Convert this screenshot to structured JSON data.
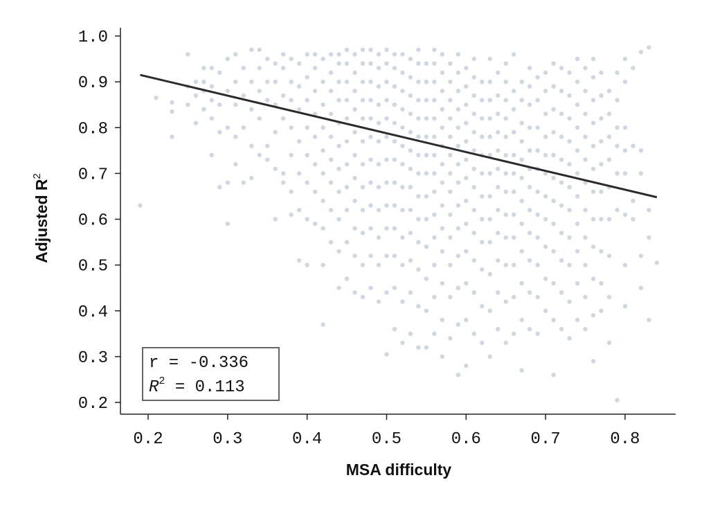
{
  "chart_data": {
    "type": "scatter",
    "xlabel": "MSA difficulty",
    "ylabel": "Adjusted R",
    "ylabel_superscript": "2",
    "xlim": [
      0.17,
      0.87
    ],
    "ylim": [
      0.175,
      1.02
    ],
    "xticks": [
      "0.2",
      "0.3",
      "0.4",
      "0.5",
      "0.6",
      "0.7",
      "0.8"
    ],
    "yticks": [
      "0.2",
      "0.3",
      "0.4",
      "0.5",
      "0.6",
      "0.7",
      "0.8",
      "0.9",
      "1.0"
    ],
    "grid": false,
    "point_color": "#8a9bb5",
    "line_color": "#2b2b2b",
    "regression_line": {
      "x": [
        0.19,
        0.84
      ],
      "y": [
        0.915,
        0.648
      ]
    },
    "annotation": {
      "r_text": "r = -0.336",
      "r2_label": "R",
      "r2_sup": "2",
      "r2_value": " = 0.113",
      "location": "bottom-left"
    },
    "columns": [
      {
        "x": 0.19,
        "y": [
          0.63
        ]
      },
      {
        "x": 0.21,
        "y": [
          0.865
        ]
      },
      {
        "x": 0.23,
        "y": [
          0.78,
          0.835,
          0.855
        ]
      },
      {
        "x": 0.25,
        "y": [
          0.96,
          0.85,
          0.89
        ]
      },
      {
        "x": 0.26,
        "y": [
          0.81,
          0.87,
          0.9
        ]
      },
      {
        "x": 0.27,
        "y": [
          0.93,
          0.84,
          0.88,
          0.9
        ]
      },
      {
        "x": 0.28,
        "y": [
          0.93,
          0.74,
          0.82,
          0.86,
          0.89
        ]
      },
      {
        "x": 0.29,
        "y": [
          0.67,
          0.79,
          0.85,
          0.92
        ]
      },
      {
        "x": 0.3,
        "y": [
          0.59,
          0.68,
          0.8,
          0.88,
          0.95
        ]
      },
      {
        "x": 0.31,
        "y": [
          0.96,
          0.72,
          0.78,
          0.85,
          0.9
        ]
      },
      {
        "x": 0.32,
        "y": [
          0.68,
          0.8,
          0.87,
          0.93
        ]
      },
      {
        "x": 0.33,
        "y": [
          0.97,
          0.69,
          0.76,
          0.84,
          0.9
        ]
      },
      {
        "x": 0.34,
        "y": [
          0.97,
          0.74,
          0.82,
          0.88,
          0.93
        ]
      },
      {
        "x": 0.35,
        "y": [
          0.73,
          0.76,
          0.86,
          0.9,
          0.95
        ]
      },
      {
        "x": 0.36,
        "y": [
          0.6,
          0.71,
          0.79,
          0.85,
          0.9,
          0.94
        ]
      },
      {
        "x": 0.37,
        "y": [
          0.68,
          0.7,
          0.82,
          0.87,
          0.93,
          0.96
        ]
      },
      {
        "x": 0.38,
        "y": [
          0.61,
          0.66,
          0.74,
          0.8,
          0.86,
          0.9,
          0.95
        ]
      },
      {
        "x": 0.39,
        "y": [
          0.51,
          0.62,
          0.7,
          0.77,
          0.84,
          0.89,
          0.94
        ]
      },
      {
        "x": 0.4,
        "y": [
          0.5,
          0.6,
          0.68,
          0.74,
          0.8,
          0.86,
          0.91,
          0.96
        ]
      },
      {
        "x": 0.41,
        "y": [
          0.59,
          0.66,
          0.72,
          0.78,
          0.83,
          0.88,
          0.93,
          0.96
        ]
      },
      {
        "x": 0.42,
        "y": [
          0.37,
          0.5,
          0.58,
          0.64,
          0.7,
          0.75,
          0.8,
          0.85,
          0.9,
          0.95
        ]
      },
      {
        "x": 0.43,
        "y": [
          0.55,
          0.62,
          0.68,
          0.73,
          0.78,
          0.83,
          0.88,
          0.92,
          0.96
        ]
      },
      {
        "x": 0.44,
        "y": [
          0.45,
          0.53,
          0.6,
          0.66,
          0.71,
          0.76,
          0.81,
          0.86,
          0.9,
          0.94,
          0.96
        ]
      },
      {
        "x": 0.45,
        "y": [
          0.47,
          0.55,
          0.62,
          0.67,
          0.72,
          0.77,
          0.82,
          0.86,
          0.9,
          0.94,
          0.97
        ]
      },
      {
        "x": 0.46,
        "y": [
          0.44,
          0.52,
          0.58,
          0.64,
          0.69,
          0.74,
          0.79,
          0.84,
          0.88,
          0.92,
          0.96
        ]
      },
      {
        "x": 0.47,
        "y": [
          0.43,
          0.5,
          0.57,
          0.62,
          0.67,
          0.72,
          0.77,
          0.82,
          0.86,
          0.9,
          0.94,
          0.97
        ]
      },
      {
        "x": 0.48,
        "y": [
          0.45,
          0.52,
          0.58,
          0.63,
          0.68,
          0.73,
          0.78,
          0.82,
          0.86,
          0.9,
          0.94,
          0.97
        ]
      },
      {
        "x": 0.49,
        "y": [
          0.42,
          0.5,
          0.56,
          0.62,
          0.67,
          0.72,
          0.77,
          0.81,
          0.85,
          0.89,
          0.93,
          0.96
        ]
      },
      {
        "x": 0.5,
        "y": [
          0.305,
          0.44,
          0.52,
          0.58,
          0.63,
          0.68,
          0.73,
          0.78,
          0.82,
          0.86,
          0.9,
          0.94,
          0.97
        ]
      },
      {
        "x": 0.51,
        "y": [
          0.36,
          0.45,
          0.52,
          0.58,
          0.63,
          0.68,
          0.73,
          0.77,
          0.81,
          0.85,
          0.89,
          0.93,
          0.96
        ]
      },
      {
        "x": 0.52,
        "y": [
          0.33,
          0.42,
          0.5,
          0.56,
          0.62,
          0.67,
          0.72,
          0.76,
          0.8,
          0.84,
          0.88,
          0.92,
          0.96
        ]
      },
      {
        "x": 0.53,
        "y": [
          0.35,
          0.44,
          0.51,
          0.57,
          0.62,
          0.67,
          0.71,
          0.75,
          0.79,
          0.83,
          0.87,
          0.91,
          0.95
        ]
      },
      {
        "x": 0.54,
        "y": [
          0.32,
          0.41,
          0.49,
          0.55,
          0.6,
          0.65,
          0.7,
          0.74,
          0.78,
          0.82,
          0.86,
          0.9,
          0.94,
          0.97
        ]
      },
      {
        "x": 0.55,
        "y": [
          0.32,
          0.4,
          0.47,
          0.54,
          0.6,
          0.65,
          0.7,
          0.74,
          0.78,
          0.82,
          0.86,
          0.9,
          0.94
        ]
      },
      {
        "x": 0.56,
        "y": [
          0.35,
          0.43,
          0.5,
          0.56,
          0.61,
          0.66,
          0.7,
          0.74,
          0.78,
          0.82,
          0.86,
          0.9,
          0.94,
          0.97
        ]
      },
      {
        "x": 0.57,
        "y": [
          0.3,
          0.38,
          0.46,
          0.53,
          0.58,
          0.63,
          0.68,
          0.72,
          0.76,
          0.8,
          0.84,
          0.88,
          0.92,
          0.96
        ]
      },
      {
        "x": 0.58,
        "y": [
          0.34,
          0.43,
          0.5,
          0.56,
          0.61,
          0.66,
          0.7,
          0.74,
          0.78,
          0.82,
          0.86,
          0.9,
          0.94
        ]
      },
      {
        "x": 0.59,
        "y": [
          0.26,
          0.37,
          0.45,
          0.52,
          0.58,
          0.63,
          0.68,
          0.72,
          0.76,
          0.8,
          0.84,
          0.88,
          0.92,
          0.96
        ]
      },
      {
        "x": 0.6,
        "y": [
          0.28,
          0.38,
          0.46,
          0.53,
          0.59,
          0.64,
          0.69,
          0.73,
          0.77,
          0.81,
          0.85,
          0.89,
          0.93
        ]
      },
      {
        "x": 0.61,
        "y": [
          0.35,
          0.44,
          0.51,
          0.57,
          0.62,
          0.67,
          0.71,
          0.75,
          0.79,
          0.83,
          0.87,
          0.91,
          0.95
        ]
      },
      {
        "x": 0.62,
        "y": [
          0.33,
          0.41,
          0.49,
          0.55,
          0.6,
          0.65,
          0.7,
          0.74,
          0.78,
          0.82,
          0.86,
          0.9
        ]
      },
      {
        "x": 0.63,
        "y": [
          0.3,
          0.4,
          0.48,
          0.55,
          0.6,
          0.65,
          0.7,
          0.74,
          0.78,
          0.82,
          0.86,
          0.9,
          0.95
        ]
      },
      {
        "x": 0.64,
        "y": [
          0.36,
          0.44,
          0.51,
          0.57,
          0.62,
          0.67,
          0.71,
          0.75,
          0.79,
          0.83,
          0.87,
          0.92
        ]
      },
      {
        "x": 0.65,
        "y": [
          0.33,
          0.42,
          0.5,
          0.56,
          0.61,
          0.66,
          0.7,
          0.74,
          0.78,
          0.82,
          0.86,
          0.9,
          0.94
        ]
      },
      {
        "x": 0.66,
        "y": [
          0.35,
          0.43,
          0.5,
          0.56,
          0.61,
          0.66,
          0.7,
          0.74,
          0.79,
          0.84,
          0.88,
          0.96
        ]
      },
      {
        "x": 0.67,
        "y": [
          0.27,
          0.38,
          0.46,
          0.53,
          0.59,
          0.64,
          0.69,
          0.73,
          0.77,
          0.81,
          0.86,
          0.9
        ]
      },
      {
        "x": 0.68,
        "y": [
          0.36,
          0.44,
          0.51,
          0.57,
          0.62,
          0.67,
          0.71,
          0.75,
          0.8,
          0.85,
          0.89,
          0.93
        ]
      },
      {
        "x": 0.69,
        "y": [
          0.35,
          0.43,
          0.5,
          0.56,
          0.61,
          0.66,
          0.71,
          0.75,
          0.8,
          0.86,
          0.91
        ]
      },
      {
        "x": 0.7,
        "y": [
          0.4,
          0.47,
          0.54,
          0.6,
          0.65,
          0.7,
          0.74,
          0.78,
          0.83,
          0.88,
          0.92
        ]
      },
      {
        "x": 0.71,
        "y": [
          0.26,
          0.38,
          0.46,
          0.53,
          0.59,
          0.64,
          0.69,
          0.74,
          0.79,
          0.84,
          0.89,
          0.94
        ]
      },
      {
        "x": 0.72,
        "y": [
          0.36,
          0.44,
          0.51,
          0.57,
          0.63,
          0.68,
          0.73,
          0.78,
          0.83,
          0.88,
          0.93
        ]
      },
      {
        "x": 0.73,
        "y": [
          0.34,
          0.42,
          0.5,
          0.56,
          0.62,
          0.67,
          0.72,
          0.77,
          0.82,
          0.87,
          0.92
        ]
      },
      {
        "x": 0.74,
        "y": [
          0.38,
          0.46,
          0.53,
          0.59,
          0.65,
          0.7,
          0.75,
          0.8,
          0.85,
          0.9,
          0.95
        ]
      },
      {
        "x": 0.75,
        "y": [
          0.36,
          0.43,
          0.5,
          0.56,
          0.62,
          0.68,
          0.73,
          0.78,
          0.83,
          0.88,
          0.93
        ]
      },
      {
        "x": 0.76,
        "y": [
          0.29,
          0.39,
          0.47,
          0.54,
          0.6,
          0.66,
          0.71,
          0.76,
          0.81,
          0.86,
          0.91,
          0.95
        ]
      },
      {
        "x": 0.77,
        "y": [
          0.4,
          0.46,
          0.53,
          0.6,
          0.66,
          0.72,
          0.77,
          0.82,
          0.87,
          0.92
        ]
      },
      {
        "x": 0.78,
        "y": [
          0.33,
          0.43,
          0.52,
          0.6,
          0.67,
          0.73,
          0.78,
          0.83,
          0.88
        ]
      },
      {
        "x": 0.79,
        "y": [
          0.205,
          0.62,
          0.7,
          0.76,
          0.8,
          0.86,
          0.92
        ]
      },
      {
        "x": 0.8,
        "y": [
          0.41,
          0.5,
          0.61,
          0.7,
          0.75,
          0.8,
          0.9,
          0.95
        ]
      },
      {
        "x": 0.81,
        "y": [
          0.6,
          0.64,
          0.76,
          0.93
        ]
      },
      {
        "x": 0.82,
        "y": [
          0.45,
          0.52,
          0.7,
          0.75,
          0.965
        ]
      },
      {
        "x": 0.83,
        "y": [
          0.38,
          0.56,
          0.62,
          0.975
        ]
      },
      {
        "x": 0.84,
        "y": [
          0.505
        ]
      }
    ]
  }
}
